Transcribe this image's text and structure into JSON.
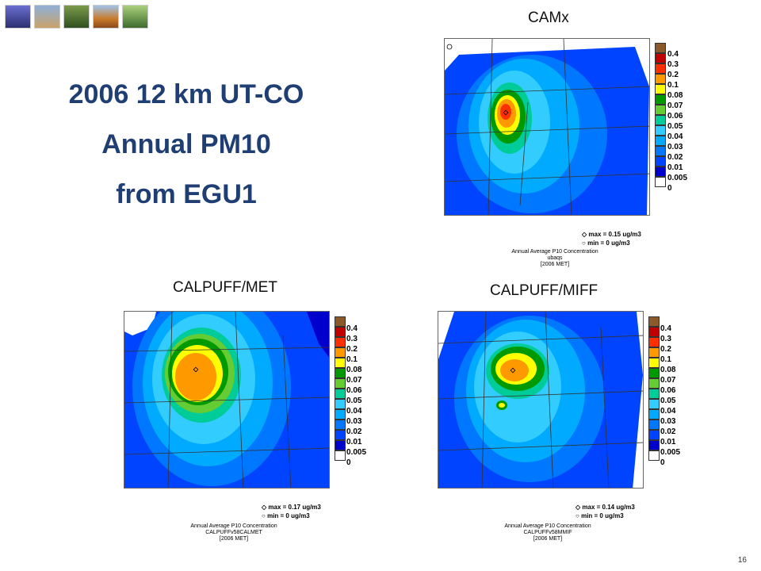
{
  "thumbnails": [
    {
      "icon": "wind-turbine-photo-icon",
      "color": "#4a4fa0"
    },
    {
      "icon": "oil-pump-photo-icon",
      "color": "#c9a36a"
    },
    {
      "icon": "forest-photo-icon",
      "color": "#3e6b2d"
    },
    {
      "icon": "autumn-landscape-photo-icon",
      "color": "#c97a2a"
    },
    {
      "icon": "lily-pond-photo-icon",
      "color": "#7aa852"
    }
  ],
  "slide_title": {
    "line1": "2006 12 km UT-CO",
    "line2": "Annual PM10",
    "line3": "from EGU1"
  },
  "colorbar_levels": [
    "0.4",
    "0.3",
    "0.2",
    "0.1",
    "0.08",
    "0.07",
    "0.06",
    "0.05",
    "0.04",
    "0.03",
    "0.02",
    "0.01",
    "0.005",
    "0"
  ],
  "colorbar_colors": [
    "#8b5a2b",
    "#c00000",
    "#ff3000",
    "#ff9900",
    "#ffff00",
    "#009900",
    "#66cc33",
    "#00cc99",
    "#33ccff",
    "#00aaff",
    "#0077ff",
    "#0044ff",
    "#0000cc",
    "#ffffff"
  ],
  "panels": {
    "camx": {
      "label": "CAMx",
      "max": "max = 0.15 ug/m3",
      "min": "min = 0 ug/m3",
      "caption1": "Annual Average P10 Concentration",
      "caption2": "ubaqs",
      "caption3": "[2006 MET]"
    },
    "calpuff_met": {
      "label": "CALPUFF/MET",
      "max": "max = 0.17 ug/m3",
      "min": "min = 0 ug/m3",
      "caption1": "Annual Average P10 Concentration",
      "caption2": "CALPUFFv58CALMET",
      "caption3": "[2006 MET]"
    },
    "calpuff_miff": {
      "label": "CALPUFF/MIFF",
      "max": "max = 0.14 ug/m3",
      "min": "min = 0 ug/m3",
      "caption1": "Annual Average P10 Concentration",
      "caption2": "CALPUFFv58MMIF",
      "caption3": "[2006 MET]"
    }
  },
  "page_number": "16"
}
